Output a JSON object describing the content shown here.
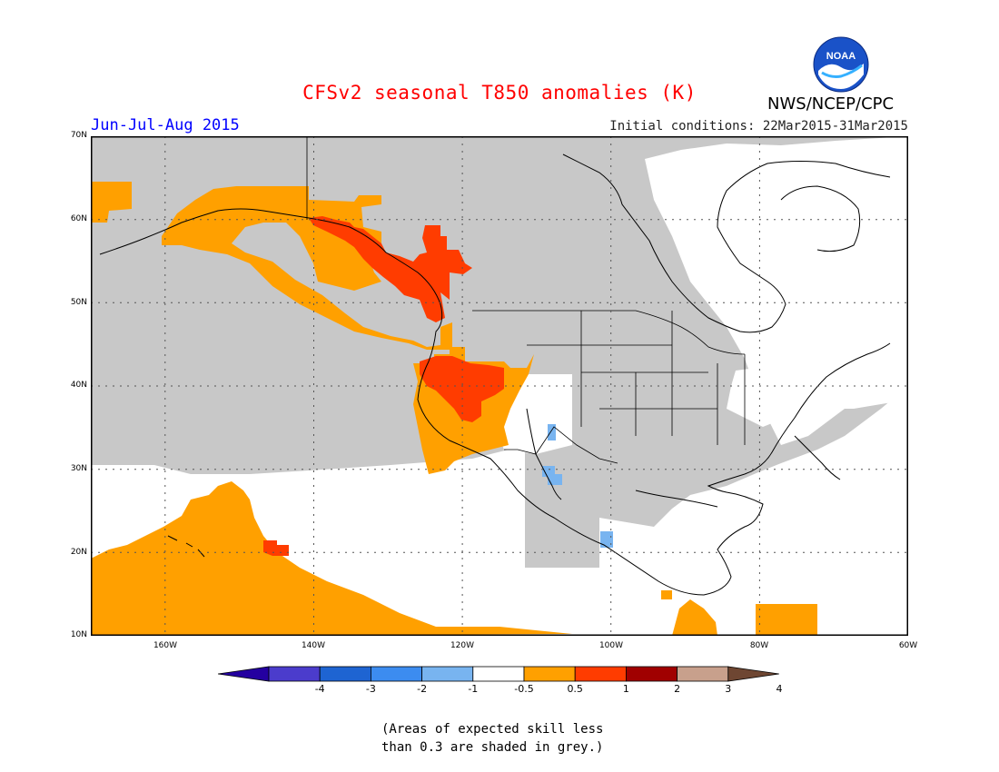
{
  "header": {
    "title": "CFSv2 seasonal T850 anomalies (K)",
    "season": "Jun-Jul-Aug 2015",
    "initial_conditions": "Initial conditions: 22Mar2015-31Mar2015",
    "agency": "NWS/NCEP/CPC",
    "logo_text": "NOAA",
    "logo_icon": "noaa-logo-icon"
  },
  "map": {
    "projection": "lat-lon",
    "lon_range": [
      -170,
      -60
    ],
    "lat_range": [
      10,
      70
    ],
    "grid": true,
    "lat_labels": [
      "70N",
      "60N",
      "50N",
      "40N",
      "30N",
      "20N",
      "10N"
    ],
    "lon_labels": [
      "160W",
      "140W",
      "120W",
      "100W",
      "80W",
      "60W"
    ]
  },
  "colorbar": {
    "labels": [
      "-4",
      "-3",
      "-2",
      "-1",
      "-0.5",
      "0.5",
      "1",
      "2",
      "3",
      "4"
    ],
    "colors": [
      "#2400a0",
      "#4b3ccc",
      "#1e64d2",
      "#3c8cf0",
      "#78b4f0",
      "#ffffff",
      "#ffa000",
      "#ff3c00",
      "#a00000",
      "#c8a08c",
      "#6e4632"
    ],
    "grey_color": "#c8c8c8"
  },
  "note": {
    "line1": "(Areas of expected skill less",
    "line2": "than 0.3 are shaded in grey.)"
  }
}
